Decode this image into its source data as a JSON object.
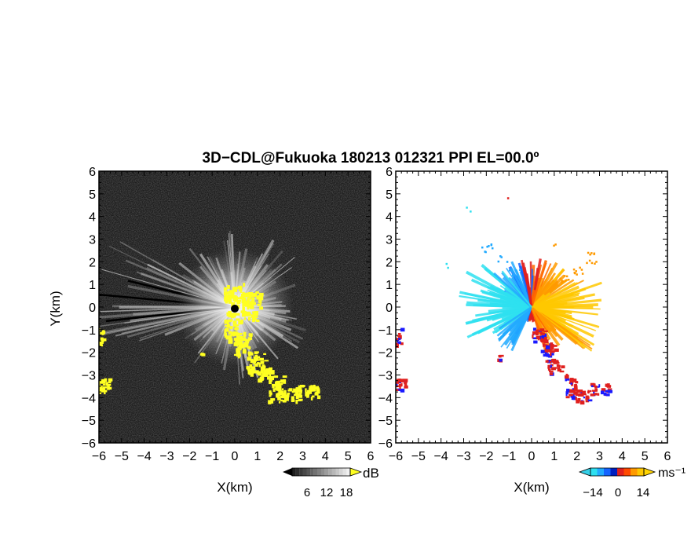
{
  "title": "3D−CDL@Fukuoka 180213 012321 PPI EL=00.0º",
  "chart_data": [
    {
      "type": "heatmap",
      "panel": "reflectivity",
      "xlabel": "X(km)",
      "ylabel": "Y(km)",
      "xlim": [
        -6,
        6
      ],
      "ylim": [
        -6,
        6
      ],
      "x_ticks": [
        "−6",
        "−5",
        "−4",
        "−3",
        "−2",
        "−1",
        "0",
        "1",
        "2",
        "3",
        "4",
        "5",
        "6"
      ],
      "y_ticks": [
        "−6",
        "−5",
        "−4",
        "−3",
        "−2",
        "−1",
        "0",
        "1",
        "2",
        "3",
        "4",
        "5",
        "6"
      ],
      "colorbar": {
        "unit": "dB",
        "ticks": [
          "6",
          "12",
          "18"
        ],
        "range": [
          0,
          24
        ]
      },
      "colors": {
        "background": "#1c1c1c",
        "echo": "#ffffff",
        "highlight": "#ffff22"
      },
      "echo_regions": [
        {
          "kind": "clutter-band",
          "x": [
            -0.1,
            1.1
          ],
          "y": [
            0.0,
            1.0
          ],
          "value": 24
        },
        {
          "kind": "clutter-band",
          "x": [
            0.0,
            2.3
          ],
          "y": [
            -2.9,
            -0.4
          ],
          "value": 24
        },
        {
          "kind": "clutter-band",
          "x": [
            1.6,
            3.6
          ],
          "y": [
            -4.3,
            -3.3
          ],
          "value": 24
        },
        {
          "kind": "clutter-band",
          "x": [
            -6.0,
            -5.6
          ],
          "y": [
            -3.7,
            -1.0
          ],
          "value": 24
        }
      ]
    },
    {
      "type": "heatmap",
      "panel": "doppler-velocity",
      "xlabel": "X(km)",
      "ylabel": "",
      "xlim": [
        -6,
        6
      ],
      "ylim": [
        -6,
        6
      ],
      "x_ticks": [
        "−6",
        "−5",
        "−4",
        "−3",
        "−2",
        "−1",
        "0",
        "1",
        "2",
        "3",
        "4",
        "5",
        "6"
      ],
      "y_ticks": [
        "−6",
        "−5",
        "−4",
        "−3",
        "−2",
        "−1",
        "0",
        "1",
        "2",
        "3",
        "4",
        "5",
        "6"
      ],
      "colorbar": {
        "unit": "ms⁻¹",
        "ticks": [
          "−14",
          "0",
          "14"
        ],
        "range": [
          -21,
          21
        ]
      },
      "colors": {
        "background": "#ffffff",
        "negative": "#1e90ff",
        "zero": "#e0201e",
        "positive": "#ff9a00"
      },
      "velocity_regions": [
        {
          "kind": "approaching",
          "x": [
            -3.2,
            0.0
          ],
          "y": [
            -1.2,
            2.7
          ],
          "value": -10
        },
        {
          "kind": "receding",
          "x": [
            0.0,
            3.2
          ],
          "y": [
            -1.8,
            2.6
          ],
          "value": 10
        },
        {
          "kind": "near-zero",
          "x": [
            0.1,
            3.4
          ],
          "y": [
            -4.3,
            -0.9
          ],
          "value": 0
        },
        {
          "kind": "near-zero",
          "x": [
            -6.0,
            -5.5
          ],
          "y": [
            -3.6,
            -1.0
          ],
          "value": 0
        }
      ]
    }
  ]
}
